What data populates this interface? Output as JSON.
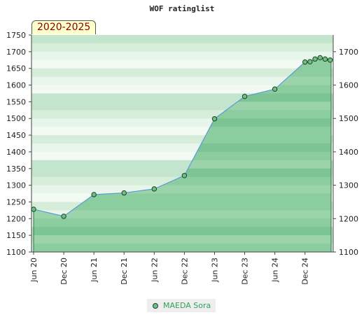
{
  "title": "WOF ratinglist",
  "period": "2020-2025",
  "chart_data": {
    "type": "area",
    "title": "WOF ratinglist",
    "ylim": [
      1100,
      1750
    ],
    "y_ticks_left": [
      1100,
      1150,
      1200,
      1250,
      1300,
      1350,
      1400,
      1450,
      1500,
      1550,
      1600,
      1650,
      1700,
      1750
    ],
    "y_ticks_right": [
      1100,
      1200,
      1300,
      1400,
      1500,
      1600,
      1700
    ],
    "x_ticks": [
      "Jun 20",
      "Dec 20",
      "Jun 21",
      "Dec 21",
      "Jun 22",
      "Dec 22",
      "Jun 23",
      "Dec 23",
      "Jun 24",
      "Dec 24"
    ],
    "legend_position": "bottom-center",
    "grid": true,
    "series": [
      {
        "name": "MAEDA Sora",
        "color": "#6fc083",
        "line_color": "#5b9bd5",
        "points": [
          {
            "x": "2020-06",
            "y": 1228
          },
          {
            "x": "2020-12",
            "y": 1207
          },
          {
            "x": "2021-06",
            "y": 1272
          },
          {
            "x": "2021-12",
            "y": 1277
          },
          {
            "x": "2022-06",
            "y": 1289
          },
          {
            "x": "2022-12",
            "y": 1329
          },
          {
            "x": "2023-06",
            "y": 1499
          },
          {
            "x": "2023-12",
            "y": 1566
          },
          {
            "x": "2024-06",
            "y": 1588
          },
          {
            "x": "2024-12",
            "y": 1669
          },
          {
            "x": "2025-01",
            "y": 1670
          },
          {
            "x": "2025-02",
            "y": 1678
          },
          {
            "x": "2025-03",
            "y": 1682
          },
          {
            "x": "2025-04",
            "y": 1678
          },
          {
            "x": "2025-05",
            "y": 1675
          }
        ]
      }
    ]
  }
}
